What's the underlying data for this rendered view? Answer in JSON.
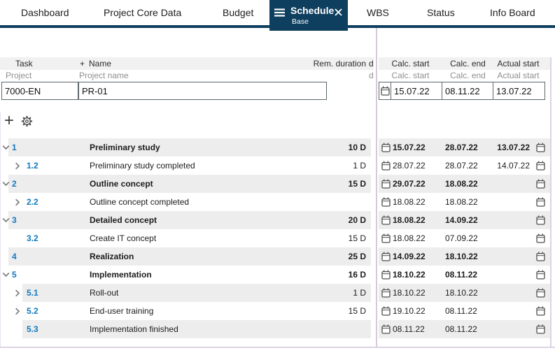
{
  "tabs": {
    "items": [
      {
        "label": "Dashboard",
        "active": false
      },
      {
        "label": "Project Core Data",
        "active": false
      },
      {
        "label": "Budget",
        "active": false
      },
      {
        "label": "Schedule",
        "active": true,
        "sublabel": "Base"
      },
      {
        "label": "WBS",
        "active": false
      },
      {
        "label": "Status",
        "active": false
      },
      {
        "label": "Info Board",
        "active": false
      }
    ]
  },
  "columns": {
    "task": "Task",
    "name_plus": "+",
    "name": "Name",
    "rem_duration": "Rem. duration",
    "calc_start": "Calc. start",
    "calc_end": "Calc. end",
    "actual_start": "Actual start",
    "clipped_fragment": "d"
  },
  "filter_row": {
    "task": "Project",
    "name": "Project name",
    "calc_start": "Calc. start",
    "calc_end": "Calc. end",
    "actual_start": "Actual start"
  },
  "filter_inputs": {
    "task_value": "7000-EN",
    "name_value": "PR-01",
    "calc_start_value": "15.07.22",
    "calc_end_value": "08.11.22",
    "actual_start_value": "13.07.22"
  },
  "toolbar": {
    "add_label": "+",
    "icons": [
      "add-icon",
      "gear-icon"
    ]
  },
  "tasks": [
    {
      "expander": "down",
      "level": 1,
      "number": "1",
      "name": "Preliminary study",
      "duration": "10 D",
      "calc_start": "15.07.22",
      "calc_end": "28.07.22",
      "actual_start": "13.07.22",
      "bold": true,
      "shaded": true
    },
    {
      "expander": "right",
      "level": 2,
      "number": "1.2",
      "name": "Preliminary study completed",
      "duration": "1 D",
      "calc_start": "28.07.22",
      "calc_end": "28.07.22",
      "actual_start": "14.07.22",
      "bold": false,
      "shaded": false
    },
    {
      "expander": "down",
      "level": 1,
      "number": "2",
      "name": "Outline concept",
      "duration": "15 D",
      "calc_start": "29.07.22",
      "calc_end": "18.08.22",
      "actual_start": "",
      "bold": true,
      "shaded": true
    },
    {
      "expander": "right",
      "level": 2,
      "number": "2.2",
      "name": "Outline concept completed",
      "duration": "",
      "calc_start": "18.08.22",
      "calc_end": "18.08.22",
      "actual_start": "",
      "bold": false,
      "shaded": false
    },
    {
      "expander": "down",
      "level": 1,
      "number": "3",
      "name": "Detailed concept",
      "duration": "20 D",
      "calc_start": "18.08.22",
      "calc_end": "14.09.22",
      "actual_start": "",
      "bold": true,
      "shaded": true
    },
    {
      "expander": "none",
      "level": 2,
      "number": "3.2",
      "name": "Create IT concept",
      "duration": "15 D",
      "calc_start": "18.08.22",
      "calc_end": "07.09.22",
      "actual_start": "",
      "bold": false,
      "shaded": false
    },
    {
      "expander": "none",
      "level": 1,
      "number": "4",
      "name": "Realization",
      "duration": "25 D",
      "calc_start": "14.09.22",
      "calc_end": "18.10.22",
      "actual_start": "",
      "bold": true,
      "shaded": true
    },
    {
      "expander": "down",
      "level": 1,
      "number": "5",
      "name": "Implementation",
      "duration": "16 D",
      "calc_start": "18.10.22",
      "calc_end": "08.11.22",
      "actual_start": "",
      "bold": true,
      "shaded": false
    },
    {
      "expander": "right",
      "level": 2,
      "number": "5.1",
      "name": "Roll-out",
      "duration": "1 D",
      "calc_start": "18.10.22",
      "calc_end": "18.10.22",
      "actual_start": "",
      "bold": false,
      "shaded": true
    },
    {
      "expander": "right",
      "level": 2,
      "number": "5.2",
      "name": "End-user training",
      "duration": "15 D",
      "calc_start": "19.10.22",
      "calc_end": "08.11.22",
      "actual_start": "",
      "bold": false,
      "shaded": false
    },
    {
      "expander": "none",
      "level": 2,
      "number": "5.3",
      "name": "Implementation finished",
      "duration": "",
      "calc_start": "08.11.22",
      "calc_end": "08.11.22",
      "actual_start": "",
      "bold": false,
      "shaded": true
    }
  ],
  "colors": {
    "accent_navy": "#0e3f5f",
    "task_number_blue": "#1178be",
    "row_shade": "#ededed",
    "splitter_lavender": "#d6c9da",
    "header_band": "#f1f1f1",
    "filter_text_gray": "#8f8f8f"
  }
}
